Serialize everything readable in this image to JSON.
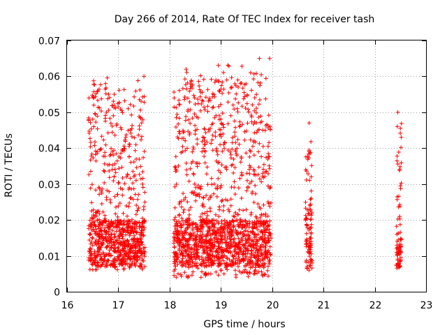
{
  "chart_data": {
    "type": "scatter",
    "title": "Day 266 of 2014, Rate Of TEC Index for receiver tash",
    "xlabel": "GPS time / hours",
    "ylabel": "ROTI / TECUs",
    "xlim": [
      16,
      23
    ],
    "ylim": [
      0,
      0.07
    ],
    "x_ticks": [
      16,
      17,
      18,
      19,
      20,
      21,
      22,
      23
    ],
    "x_tick_labels": [
      "16",
      "17",
      "18",
      "19",
      "20",
      "21",
      "22",
      "23"
    ],
    "y_ticks": [
      0,
      0.01,
      0.02,
      0.03,
      0.04,
      0.05,
      0.06,
      0.07
    ],
    "y_tick_labels": [
      "0",
      "0.01",
      "0.02",
      "0.03",
      "0.04",
      "0.05",
      "0.06",
      "0.07"
    ],
    "grid": true,
    "marker": "+",
    "color": "#ff0000",
    "series": [
      {
        "name": "ROTI",
        "clusters": [
          {
            "x_range": [
              16.42,
              17.52
            ],
            "y_range": [
              0.006,
              0.06
            ],
            "density": "high",
            "concentration_y": [
              0.007,
              0.02
            ]
          },
          {
            "x_range": [
              18.08,
              19.98
            ],
            "y_range": [
              0.004,
              0.065
            ],
            "density": "high",
            "concentration_y": [
              0.007,
              0.02
            ]
          },
          {
            "x_range": [
              20.65,
              20.78
            ],
            "y_range": [
              0.006,
              0.047
            ],
            "density": "medium",
            "concentration_y": [
              0.008,
              0.025
            ]
          },
          {
            "x_range": [
              22.42,
              22.52
            ],
            "y_range": [
              0.006,
              0.05
            ],
            "density": "low",
            "concentration_y": [
              0.006,
              0.015
            ]
          }
        ],
        "notable_points": [
          {
            "x": 16.52,
            "y": 0.052
          },
          {
            "x": 16.6,
            "y": 0.056
          },
          {
            "x": 16.75,
            "y": 0.058
          },
          {
            "x": 16.92,
            "y": 0.055
          },
          {
            "x": 17.5,
            "y": 0.06
          },
          {
            "x": 18.32,
            "y": 0.062
          },
          {
            "x": 19.33,
            "y": 0.059
          },
          {
            "x": 19.58,
            "y": 0.061
          },
          {
            "x": 19.75,
            "y": 0.065
          },
          {
            "x": 19.95,
            "y": 0.065
          },
          {
            "x": 20.72,
            "y": 0.047
          },
          {
            "x": 22.45,
            "y": 0.05
          }
        ]
      }
    ]
  }
}
